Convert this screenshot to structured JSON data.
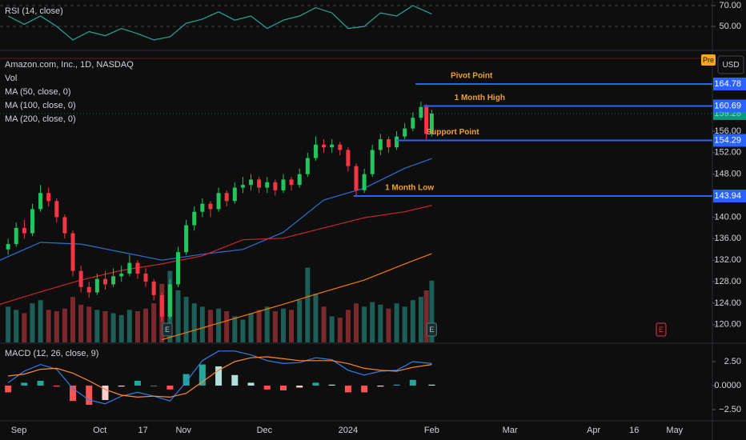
{
  "x_axis": {
    "xlim": [
      "2023-08-25",
      "2024-05-15"
    ],
    "xticks": [
      {
        "value": "2023-09-01",
        "label": "Sep"
      },
      {
        "value": "2023-10-01",
        "label": "Oct"
      },
      {
        "value": "2023-10-17",
        "label": "17"
      },
      {
        "value": "2023-11-01",
        "label": "Nov"
      },
      {
        "value": "2023-12-01",
        "label": "Dec"
      },
      {
        "value": "2024-01-01",
        "label": "2024"
      },
      {
        "value": "2024-02-01",
        "label": "Feb"
      },
      {
        "value": "2024-03-01",
        "label": "Mar"
      },
      {
        "value": "2024-04-01",
        "label": "Apr"
      },
      {
        "value": "2024-04-16",
        "label": "16"
      },
      {
        "value": "2024-05-01",
        "label": "May"
      }
    ]
  },
  "chart_data": [
    {
      "type": "line",
      "title": "RSI (14, close)",
      "color": "#26a69a",
      "grid": true,
      "ylim": [
        27.7,
        75.4
      ],
      "yticks": [
        {
          "value": 70,
          "label": "70.00"
        },
        {
          "value": 50,
          "label": "50.00"
        }
      ],
      "x": [
        "2023-08-28",
        "2023-09-03",
        "2023-09-09",
        "2023-09-15",
        "2023-09-21",
        "2023-09-27",
        "2023-10-03",
        "2023-10-09",
        "2023-10-15",
        "2023-10-21",
        "2023-10-27",
        "2023-11-02",
        "2023-11-08",
        "2023-11-14",
        "2023-11-20",
        "2023-11-26",
        "2023-12-02",
        "2023-12-08",
        "2023-12-14",
        "2023-12-20",
        "2023-12-26",
        "2024-01-01",
        "2024-01-07",
        "2024-01-13",
        "2024-01-19",
        "2024-01-25",
        "2024-02-01"
      ],
      "values": [
        60,
        52,
        60,
        50,
        37,
        45,
        41,
        48,
        43,
        37,
        40,
        53,
        57,
        64,
        56,
        60,
        48,
        56,
        60,
        68,
        63,
        48,
        50,
        63,
        60,
        70,
        62
      ]
    },
    {
      "type": "candlestick",
      "title": "Amazon.com, Inc., 1D, NASDAQ",
      "volume_name": "Vol",
      "currency": "USD",
      "session": "Pre",
      "ylim": [
        116.7,
        170.88
      ],
      "yticks": [
        {
          "value": 120,
          "label": "120.00"
        },
        {
          "value": 124,
          "label": "124.00"
        },
        {
          "value": 128,
          "label": "128.00"
        },
        {
          "value": 132,
          "label": "132.00"
        },
        {
          "value": 136,
          "label": "136.00"
        },
        {
          "value": 140,
          "label": "140.00"
        },
        {
          "value": 148,
          "label": "148.00"
        },
        {
          "value": 152,
          "label": "152.00"
        },
        {
          "value": 156,
          "label": "156.00"
        }
      ],
      "colors": {
        "up": "#22c55e",
        "down": "#f23645",
        "volume_up": "#1d5e57",
        "volume_down": "#7a2a2e",
        "last": "#089981",
        "level": "#2962ff",
        "level_label": "#f0a030"
      },
      "volume_ylim": [
        0,
        160
      ],
      "x": [
        "2023-08-28",
        "2023-08-31",
        "2023-09-03",
        "2023-09-06",
        "2023-09-09",
        "2023-09-12",
        "2023-09-15",
        "2023-09-18",
        "2023-09-21",
        "2023-09-24",
        "2023-09-27",
        "2023-09-30",
        "2023-10-03",
        "2023-10-06",
        "2023-10-09",
        "2023-10-12",
        "2023-10-15",
        "2023-10-18",
        "2023-10-21",
        "2023-10-24",
        "2023-10-27",
        "2023-10-30",
        "2023-11-02",
        "2023-11-05",
        "2023-11-08",
        "2023-11-11",
        "2023-11-14",
        "2023-11-17",
        "2023-11-20",
        "2023-11-23",
        "2023-11-26",
        "2023-11-29",
        "2023-12-02",
        "2023-12-05",
        "2023-12-08",
        "2023-12-11",
        "2023-12-14",
        "2023-12-17",
        "2023-12-20",
        "2023-12-23",
        "2023-12-26",
        "2023-12-29",
        "2024-01-01",
        "2024-01-04",
        "2024-01-07",
        "2024-01-10",
        "2024-01-13",
        "2024-01-16",
        "2024-01-19",
        "2024-01-22",
        "2024-01-25",
        "2024-01-28",
        "2024-01-30",
        "2024-02-01"
      ],
      "open": [
        134,
        135,
        138,
        137,
        141.5,
        144.5,
        143,
        140,
        137,
        130,
        127,
        126,
        128.5,
        127.5,
        129,
        129.5,
        131.5,
        129.5,
        128,
        125.5,
        121.5,
        127.5,
        133.5,
        138.5,
        141,
        142.5,
        141.5,
        144.5,
        143,
        145.5,
        146,
        147,
        145.5,
        146.5,
        145,
        147,
        146,
        148,
        151,
        153.5,
        153,
        153.5,
        152.5,
        149.5,
        145,
        148,
        152.5,
        154.5,
        153,
        155,
        156.5,
        158.5,
        160.5,
        155.5
      ],
      "high": [
        136,
        139,
        139.5,
        142.5,
        146,
        145.5,
        143.5,
        140.5,
        137.5,
        131,
        128,
        129.5,
        130,
        130.5,
        131,
        133,
        132,
        130.5,
        128.5,
        126,
        128.5,
        134.5,
        139.5,
        142,
        143.5,
        143,
        145.5,
        145,
        146.5,
        147.5,
        148,
        147.5,
        147.5,
        147,
        148,
        147.5,
        149,
        152,
        155,
        154.5,
        154.5,
        154,
        153,
        150,
        149,
        153.5,
        155.5,
        155,
        156,
        157.5,
        159.5,
        161.5,
        161,
        160
      ],
      "low": [
        133,
        134.5,
        136,
        136.5,
        141,
        142,
        139,
        136,
        129,
        126,
        125,
        125.5,
        126.5,
        127,
        128,
        129,
        128.5,
        127,
        124.5,
        120.5,
        121,
        127,
        133,
        137.5,
        140,
        140,
        141,
        142,
        142.5,
        144.5,
        145,
        144.5,
        144.5,
        144,
        144.5,
        145,
        145.5,
        147.5,
        150.5,
        152,
        152,
        151.5,
        148.5,
        144,
        144.5,
        147.5,
        151.5,
        152,
        152.5,
        154.5,
        156,
        158,
        154.5,
        155
      ],
      "close": [
        135,
        138,
        137,
        141.5,
        144.5,
        143,
        140,
        137,
        130,
        127,
        126,
        128.5,
        127.5,
        129,
        129.5,
        131.5,
        129.5,
        128,
        125.5,
        121.5,
        127.5,
        133.5,
        138.5,
        141,
        142.5,
        141.5,
        144.5,
        143,
        145.5,
        146,
        147,
        145.5,
        146.5,
        145,
        147,
        146,
        148,
        151,
        153.5,
        153,
        153.5,
        152.5,
        149.5,
        145,
        148,
        152.5,
        154.5,
        153,
        155,
        156.5,
        158.5,
        160.5,
        155.5,
        159.28
      ],
      "volume": [
        55,
        50,
        45,
        60,
        65,
        50,
        48,
        52,
        70,
        58,
        55,
        50,
        48,
        45,
        42,
        50,
        48,
        52,
        60,
        90,
        110,
        80,
        70,
        60,
        55,
        50,
        52,
        48,
        40,
        35,
        45,
        50,
        55,
        48,
        52,
        50,
        65,
        115,
        75,
        55,
        40,
        38,
        50,
        60,
        55,
        62,
        58,
        52,
        60,
        55,
        65,
        70,
        80,
        95
      ],
      "last_price": 159.28,
      "moving_averages": [
        {
          "name": "MA (50, close, 0)",
          "color": "#2f6fd0",
          "x": [
            "2023-08-25",
            "2023-09-09",
            "2023-09-24",
            "2023-10-09",
            "2023-10-24",
            "2023-11-08",
            "2023-11-23",
            "2023-12-08",
            "2023-12-23",
            "2024-01-07",
            "2024-01-22",
            "2024-02-01"
          ],
          "values": [
            132.0,
            135.3,
            135.0,
            133.5,
            132.0,
            133.1,
            134.0,
            137.2,
            143.2,
            145.4,
            149.1,
            150.9
          ]
        },
        {
          "name": "MA (100, close, 0)",
          "color": "#c62828",
          "x": [
            "2023-08-25",
            "2023-09-09",
            "2023-09-24",
            "2023-10-09",
            "2023-10-24",
            "2023-11-08",
            "2023-11-23",
            "2023-12-08",
            "2023-12-23",
            "2024-01-07",
            "2024-01-22",
            "2024-02-01"
          ],
          "values": [
            123.8,
            126.1,
            128.3,
            130.1,
            131.3,
            132.8,
            135.8,
            136.1,
            138.0,
            139.9,
            141.0,
            142.2
          ]
        },
        {
          "name": "MA (200, close, 0)",
          "color": "#f57c00",
          "x": [
            "2023-08-25",
            "2023-09-09",
            "2023-09-24",
            "2023-10-09",
            "2023-10-24",
            "2023-11-08",
            "2023-11-23",
            "2023-12-08",
            "2023-12-23",
            "2024-01-07",
            "2024-01-22",
            "2024-02-01"
          ],
          "values": [
            null,
            null,
            null,
            null,
            117.2,
            119.4,
            121.6,
            123.8,
            126.1,
            128.3,
            131.3,
            133.2
          ]
        }
      ],
      "levels": [
        {
          "name": "Pivot Point",
          "value": 164.78,
          "from": "2024-01-26"
        },
        {
          "name": "1 Month High",
          "value": 160.69,
          "from": "2024-01-29"
        },
        {
          "name": "Support Point",
          "value": 154.29,
          "from": "2024-01-19"
        },
        {
          "name": "1 Month Low",
          "value": 143.94,
          "from": "2024-01-03"
        }
      ],
      "events": [
        {
          "date": "2023-10-26",
          "label": "E"
        },
        {
          "date": "2024-02-01",
          "label": "E"
        },
        {
          "date": "2024-04-26",
          "label": "E"
        }
      ]
    },
    {
      "type": "macd",
      "title": "MACD (12, 26, close, 9)",
      "ylim": [
        -3.58,
        4.33
      ],
      "yticks": [
        {
          "value": 2.5,
          "label": "2.50"
        },
        {
          "value": 0,
          "label": "0.0000"
        },
        {
          "value": -2.5,
          "label": "−2.50"
        }
      ],
      "colors": {
        "macd": "#2f80ed",
        "signal": "#ff8a2b",
        "up_strong": "#26a69a",
        "up_weak": "#b2dfdb",
        "down_strong": "#ff5252",
        "down_weak": "#ffcdd2"
      },
      "x": [
        "2023-08-28",
        "2023-09-03",
        "2023-09-09",
        "2023-09-15",
        "2023-09-21",
        "2023-09-27",
        "2023-10-03",
        "2023-10-09",
        "2023-10-15",
        "2023-10-21",
        "2023-10-27",
        "2023-11-02",
        "2023-11-08",
        "2023-11-14",
        "2023-11-20",
        "2023-11-26",
        "2023-12-02",
        "2023-12-08",
        "2023-12-14",
        "2023-12-20",
        "2023-12-26",
        "2024-01-01",
        "2024-01-07",
        "2024-01-13",
        "2024-01-19",
        "2024-01-25",
        "2024-02-01"
      ],
      "macd": [
        0.3,
        1.5,
        2.2,
        1.7,
        -0.3,
        -1.5,
        -1.9,
        -1.1,
        -0.7,
        -1.1,
        -1.6,
        0.4,
        2.6,
        3.6,
        3.6,
        3.2,
        2.6,
        2.3,
        2.4,
        2.9,
        2.7,
        1.6,
        1.1,
        1.5,
        1.6,
        2.5,
        2.3
      ],
      "signal": [
        1.0,
        1.2,
        1.7,
        1.8,
        1.3,
        0.5,
        -0.4,
        -1.0,
        -1.2,
        -1.1,
        -1.2,
        -0.8,
        0.4,
        1.6,
        2.5,
        2.9,
        3.0,
        2.8,
        2.6,
        2.6,
        2.6,
        2.3,
        1.8,
        1.6,
        1.5,
        1.9,
        2.2
      ],
      "histogram": [
        -0.7,
        0.3,
        0.5,
        -0.1,
        -1.6,
        -2.0,
        -1.5,
        -0.1,
        0.5,
        0,
        -0.4,
        1.2,
        2.2,
        2.0,
        1.1,
        0.3,
        -0.4,
        -0.5,
        -0.2,
        0.3,
        0.1,
        -0.7,
        -0.7,
        -0.1,
        0.1,
        0.6,
        0.1
      ]
    }
  ]
}
